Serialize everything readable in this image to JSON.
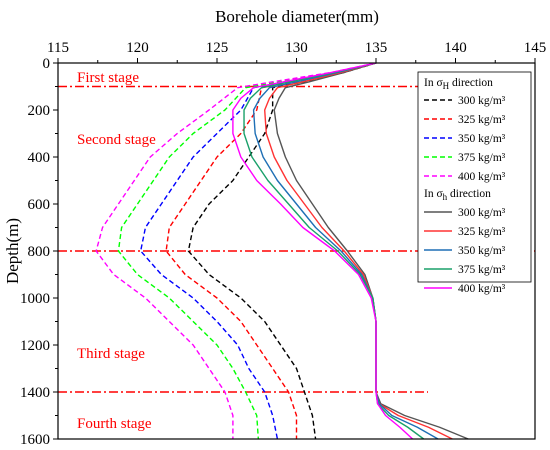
{
  "chart_data": {
    "type": "line",
    "xlabel": "Borehole diameter(mm)",
    "ylabel": "Depth(m)",
    "xlim": [
      115,
      145
    ],
    "ylim": [
      0,
      1600
    ],
    "y_inverted": true,
    "x_axis_position": "top",
    "x_ticks": [
      "115",
      "120",
      "125",
      "130",
      "135",
      "140",
      "145"
    ],
    "y_ticks": [
      "0",
      "200",
      "400",
      "600",
      "800",
      "1000",
      "1200",
      "1400",
      "1600"
    ],
    "stage_lines": [
      100,
      800,
      1400
    ],
    "stage_labels": [
      "First stage",
      "Second stage",
      "Third stage",
      "Fourth stage"
    ],
    "legend": {
      "position": "top-right",
      "group1_title": "In σH direction",
      "group2_title": "In σh direction"
    },
    "series": [
      {
        "name": "300 kg/m³",
        "group": "H",
        "style": "dashed",
        "color": "#000000",
        "points": [
          [
            135,
            0
          ],
          [
            133,
            40
          ],
          [
            130.5,
            80
          ],
          [
            128.5,
            105
          ],
          [
            128.5,
            200
          ],
          [
            128,
            300
          ],
          [
            127,
            400
          ],
          [
            126,
            500
          ],
          [
            124.5,
            600
          ],
          [
            123.5,
            700
          ],
          [
            123.2,
            800
          ],
          [
            124.5,
            900
          ],
          [
            126.5,
            1000
          ],
          [
            128,
            1100
          ],
          [
            129,
            1200
          ],
          [
            130,
            1300
          ],
          [
            130.5,
            1400
          ],
          [
            131,
            1500
          ],
          [
            131.2,
            1600
          ]
        ]
      },
      {
        "name": "325 kg/m³",
        "group": "H",
        "style": "dashed",
        "color": "#ff0000",
        "points": [
          [
            135,
            0
          ],
          [
            132.8,
            40
          ],
          [
            130,
            80
          ],
          [
            127.8,
            105
          ],
          [
            127.5,
            200
          ],
          [
            126.5,
            300
          ],
          [
            125,
            400
          ],
          [
            124,
            500
          ],
          [
            123,
            600
          ],
          [
            122,
            700
          ],
          [
            121.8,
            800
          ],
          [
            123,
            900
          ],
          [
            125,
            1000
          ],
          [
            126.5,
            1100
          ],
          [
            127.5,
            1200
          ],
          [
            128.5,
            1300
          ],
          [
            129.5,
            1400
          ],
          [
            130,
            1500
          ],
          [
            130,
            1600
          ]
        ]
      },
      {
        "name": "350 kg/m³",
        "group": "H",
        "style": "dashed",
        "color": "#0000ff",
        "points": [
          [
            135,
            0
          ],
          [
            132.6,
            40
          ],
          [
            129.5,
            80
          ],
          [
            127.3,
            105
          ],
          [
            126.5,
            200
          ],
          [
            125,
            300
          ],
          [
            123.5,
            400
          ],
          [
            122.5,
            500
          ],
          [
            121.5,
            600
          ],
          [
            120.5,
            700
          ],
          [
            120.2,
            800
          ],
          [
            121.5,
            900
          ],
          [
            123.5,
            1000
          ],
          [
            125,
            1100
          ],
          [
            126.3,
            1200
          ],
          [
            127,
            1300
          ],
          [
            128,
            1400
          ],
          [
            128.5,
            1500
          ],
          [
            128.8,
            1600
          ]
        ]
      },
      {
        "name": "375 kg/m³",
        "group": "H",
        "style": "dashed",
        "color": "#00ff00",
        "points": [
          [
            135,
            0
          ],
          [
            132.4,
            40
          ],
          [
            129,
            80
          ],
          [
            126.8,
            105
          ],
          [
            125.5,
            200
          ],
          [
            123.5,
            300
          ],
          [
            122,
            400
          ],
          [
            121,
            500
          ],
          [
            120,
            600
          ],
          [
            119,
            700
          ],
          [
            118.8,
            800
          ],
          [
            120,
            900
          ],
          [
            122,
            1000
          ],
          [
            123.5,
            1100
          ],
          [
            125,
            1200
          ],
          [
            126,
            1300
          ],
          [
            126.8,
            1400
          ],
          [
            127.5,
            1500
          ],
          [
            127.6,
            1600
          ]
        ]
      },
      {
        "name": "400 kg/m³",
        "group": "H",
        "style": "dashed",
        "color": "#ff00ff",
        "points": [
          [
            135,
            0
          ],
          [
            132.2,
            40
          ],
          [
            128.5,
            80
          ],
          [
            126.3,
            105
          ],
          [
            124.5,
            200
          ],
          [
            122.5,
            300
          ],
          [
            120.8,
            400
          ],
          [
            119.8,
            500
          ],
          [
            118.8,
            600
          ],
          [
            117.8,
            700
          ],
          [
            117.4,
            800
          ],
          [
            118.5,
            900
          ],
          [
            120.5,
            1000
          ],
          [
            122,
            1100
          ],
          [
            123.5,
            1200
          ],
          [
            124.5,
            1300
          ],
          [
            125.5,
            1400
          ],
          [
            126,
            1500
          ],
          [
            126,
            1600
          ]
        ]
      },
      {
        "name": "300 kg/m³",
        "group": "h",
        "style": "solid",
        "color": "#555555",
        "points": [
          [
            135,
            0
          ],
          [
            133,
            40
          ],
          [
            130.8,
            80
          ],
          [
            129.3,
            105
          ],
          [
            128.9,
            150
          ],
          [
            128.6,
            200
          ],
          [
            128.8,
            300
          ],
          [
            129.3,
            400
          ],
          [
            130,
            500
          ],
          [
            131,
            600
          ],
          [
            132,
            700
          ],
          [
            133.2,
            800
          ],
          [
            134.3,
            900
          ],
          [
            134.8,
            1000
          ],
          [
            135,
            1100
          ],
          [
            135,
            1200
          ],
          [
            135,
            1300
          ],
          [
            135,
            1400
          ],
          [
            135.3,
            1450
          ],
          [
            136.8,
            1500
          ],
          [
            139,
            1550
          ],
          [
            140.8,
            1600
          ]
        ]
      },
      {
        "name": "325 kg/m³",
        "group": "h",
        "style": "solid",
        "color": "#ff3333",
        "points": [
          [
            135,
            0
          ],
          [
            132.8,
            40
          ],
          [
            130.4,
            80
          ],
          [
            128.8,
            105
          ],
          [
            128.3,
            150
          ],
          [
            128,
            200
          ],
          [
            128.1,
            300
          ],
          [
            128.6,
            400
          ],
          [
            129.4,
            500
          ],
          [
            130.5,
            600
          ],
          [
            131.6,
            700
          ],
          [
            133,
            800
          ],
          [
            134.2,
            900
          ],
          [
            134.8,
            1000
          ],
          [
            135,
            1100
          ],
          [
            135,
            1200
          ],
          [
            135,
            1300
          ],
          [
            135,
            1400
          ],
          [
            135.2,
            1450
          ],
          [
            136.4,
            1500
          ],
          [
            138.3,
            1550
          ],
          [
            139.8,
            1600
          ]
        ]
      },
      {
        "name": "350 kg/m³",
        "group": "h",
        "style": "solid",
        "color": "#1f6fb5",
        "points": [
          [
            135,
            0
          ],
          [
            132.6,
            40
          ],
          [
            130,
            80
          ],
          [
            128.3,
            105
          ],
          [
            127.7,
            150
          ],
          [
            127.3,
            200
          ],
          [
            127.4,
            300
          ],
          [
            127.9,
            400
          ],
          [
            128.8,
            500
          ],
          [
            130,
            600
          ],
          [
            131.2,
            700
          ],
          [
            132.8,
            800
          ],
          [
            134.1,
            900
          ],
          [
            134.8,
            1000
          ],
          [
            135,
            1100
          ],
          [
            135,
            1200
          ],
          [
            135,
            1300
          ],
          [
            135,
            1400
          ],
          [
            135.2,
            1450
          ],
          [
            136,
            1500
          ],
          [
            137.6,
            1550
          ],
          [
            138.9,
            1600
          ]
        ]
      },
      {
        "name": "375 kg/m³",
        "group": "h",
        "style": "solid",
        "color": "#1aa06a",
        "points": [
          [
            135,
            0
          ],
          [
            132.4,
            40
          ],
          [
            129.6,
            80
          ],
          [
            127.8,
            105
          ],
          [
            127.1,
            150
          ],
          [
            126.7,
            200
          ],
          [
            126.7,
            300
          ],
          [
            127.2,
            400
          ],
          [
            128.2,
            500
          ],
          [
            129.5,
            600
          ],
          [
            130.8,
            700
          ],
          [
            132.6,
            800
          ],
          [
            134,
            900
          ],
          [
            134.8,
            1000
          ],
          [
            135,
            1100
          ],
          [
            135,
            1200
          ],
          [
            135,
            1300
          ],
          [
            135,
            1400
          ],
          [
            135.1,
            1450
          ],
          [
            135.8,
            1500
          ],
          [
            137,
            1550
          ],
          [
            138,
            1600
          ]
        ]
      },
      {
        "name": "400 kg/m³",
        "group": "h",
        "style": "solid",
        "color": "#ff00ff",
        "points": [
          [
            135,
            0
          ],
          [
            132.2,
            40
          ],
          [
            129.2,
            80
          ],
          [
            127.3,
            105
          ],
          [
            126.5,
            150
          ],
          [
            126,
            200
          ],
          [
            126,
            300
          ],
          [
            126.5,
            400
          ],
          [
            127.5,
            500
          ],
          [
            129,
            600
          ],
          [
            130.4,
            700
          ],
          [
            132.4,
            800
          ],
          [
            133.9,
            900
          ],
          [
            134.7,
            1000
          ],
          [
            135,
            1100
          ],
          [
            135,
            1200
          ],
          [
            135,
            1300
          ],
          [
            135,
            1400
          ],
          [
            135.1,
            1450
          ],
          [
            135.6,
            1500
          ],
          [
            136.5,
            1550
          ],
          [
            137.3,
            1600
          ]
        ]
      }
    ]
  }
}
